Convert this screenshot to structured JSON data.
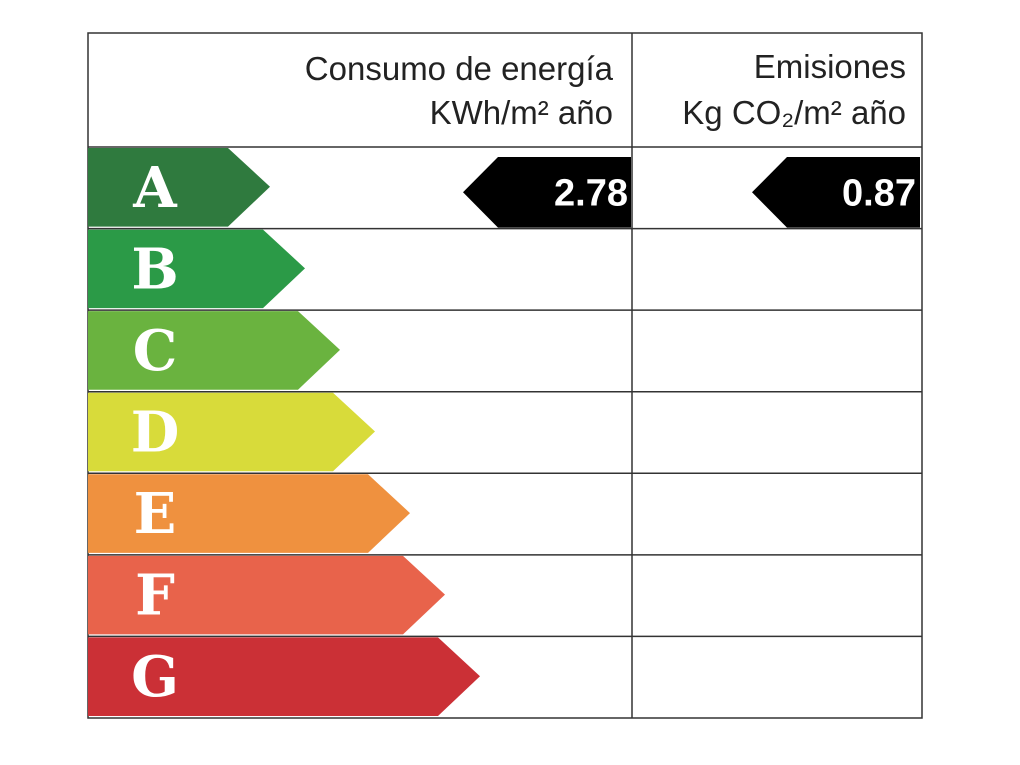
{
  "header": {
    "energy_title": "Consumo de energía",
    "energy_unit": "KWh/m² año",
    "emissions_title": "Emisiones",
    "emissions_unit": "Kg CO₂/m² año"
  },
  "ratings": [
    "A",
    "B",
    "C",
    "D",
    "E",
    "F",
    "G"
  ],
  "colors": [
    "#2f7a3e",
    "#2b9a47",
    "#6ab33f",
    "#d8db3a",
    "#ef913f",
    "#e8634b",
    "#cb3036"
  ],
  "result": {
    "energy": 2.78,
    "emissions": 0.87
  }
}
